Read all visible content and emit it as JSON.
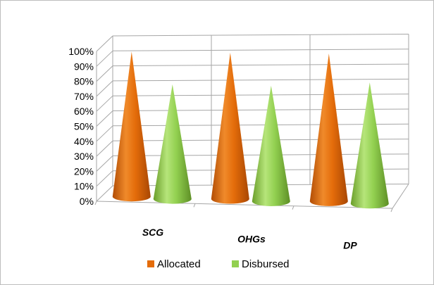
{
  "chart_data": {
    "type": "bar",
    "style": "3d-cone",
    "title": "",
    "xlabel": "",
    "ylabel": "",
    "ylim": [
      0,
      100
    ],
    "y_ticks": [
      "0%",
      "10%",
      "20%",
      "30%",
      "40%",
      "50%",
      "60%",
      "70%",
      "80%",
      "90%",
      "100%"
    ],
    "categories": [
      "SCG",
      "OHGs",
      "DP"
    ],
    "series": [
      {
        "name": "Allocated",
        "color": "#e46c0a",
        "values": [
          100,
          100,
          100
        ]
      },
      {
        "name": "Disbursed",
        "color": "#92d050",
        "values": [
          78,
          78,
          81
        ]
      }
    ],
    "grid": true,
    "legend": "bottom"
  }
}
